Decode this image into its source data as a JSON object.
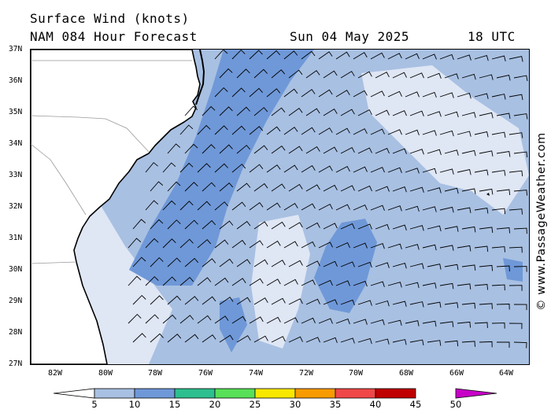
{
  "header": {
    "title": "Surface Wind (knots)",
    "model": "NAM 084 Hour Forecast",
    "date": "Sun 04 May 2025",
    "time": "18 UTC"
  },
  "map": {
    "lat_labels": [
      "37N",
      "36N",
      "35N",
      "34N",
      "33N",
      "32N",
      "31N",
      "30N",
      "29N",
      "28N",
      "27N"
    ],
    "lon_labels": [
      "82W",
      "80W",
      "78W",
      "76W",
      "74W",
      "72W",
      "70W",
      "68W",
      "66W",
      "64W"
    ],
    "extent": {
      "lon_min": -83,
      "lon_max": -63.5,
      "lat_min": 27,
      "lat_max": 37
    },
    "colors": {
      "land": "#ffffff",
      "ocean_low": "#dfe6f4",
      "ocean_mid": "#a8c0e2",
      "ocean_high": "#6f98d8",
      "coast": "#000000",
      "state_border": "#999999"
    }
  },
  "legend": {
    "labels": [
      "5",
      "10",
      "15",
      "20",
      "25",
      "30",
      "35",
      "40",
      "45",
      "50"
    ],
    "colors": [
      "#dfe6f4",
      "#a8c0e2",
      "#6f98d8",
      "#2dbf8f",
      "#58e058",
      "#f8e800",
      "#f89b00",
      "#f04848",
      "#c00000",
      "#c800c8"
    ]
  },
  "copyright": "© www.PassageWeather.com"
}
